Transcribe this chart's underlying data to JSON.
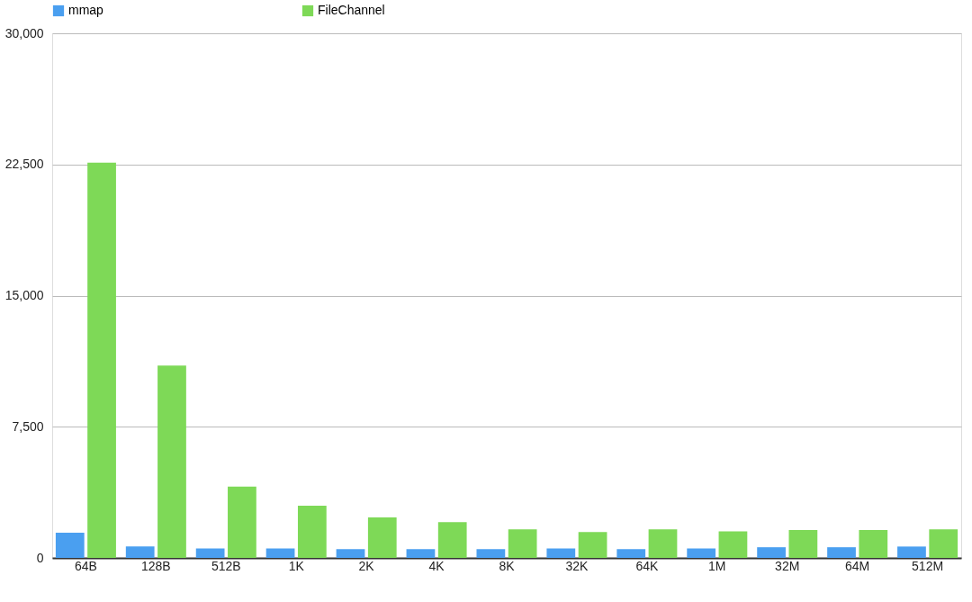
{
  "chart_data": {
    "type": "bar",
    "categories": [
      "64B",
      "128B",
      "512B",
      "1K",
      "2K",
      "4K",
      "8K",
      "32K",
      "64K",
      "1M",
      "32M",
      "64M",
      "512M"
    ],
    "series": [
      {
        "name": "mmap",
        "color": "#4a9ff0",
        "values": [
          1440,
          650,
          540,
          540,
          505,
          505,
          505,
          540,
          505,
          540,
          610,
          610,
          650
        ]
      },
      {
        "name": "FileChannel",
        "color": "#7ed957",
        "values": [
          22600,
          11000,
          4080,
          2980,
          2320,
          2040,
          1640,
          1480,
          1630,
          1520,
          1590,
          1590,
          1640
        ]
      }
    ],
    "ylim": [
      0,
      30000
    ],
    "yticks": [
      {
        "value": 0,
        "label": "0"
      },
      {
        "value": 7500,
        "label": "7,500"
      },
      {
        "value": 15000,
        "label": "15,000"
      },
      {
        "value": 22500,
        "label": "22,500"
      },
      {
        "value": 30000,
        "label": "30,000"
      }
    ],
    "grid": "y",
    "legend": "top"
  }
}
